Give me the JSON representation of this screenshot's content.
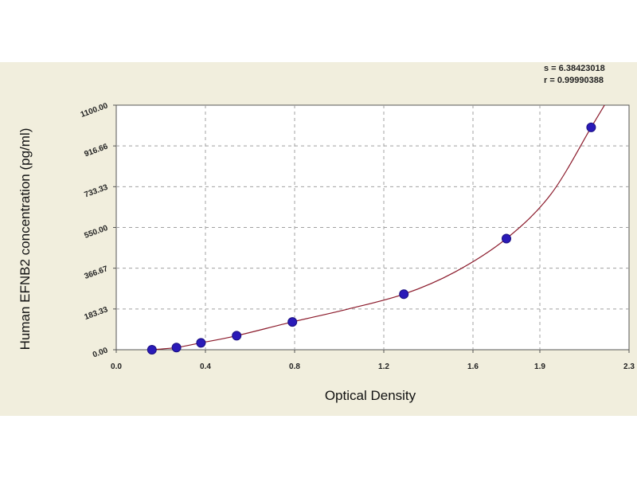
{
  "fit_stats": {
    "s_line": "s = 6.38423018",
    "r_line": "r = 0.99990388"
  },
  "colors": {
    "background": "#f1eedd",
    "plot_area": "#ffffff",
    "curve": "#8b1a2b",
    "point_fill": "#2a1ab8",
    "grid": "#a0a0a0"
  },
  "chart_data": {
    "type": "scatter",
    "title": "",
    "xlabel": "Optical Density",
    "ylabel": "Human EFNB2 concentration (pg/ml)",
    "xlim": [
      0,
      2.3
    ],
    "ylim": [
      0,
      1100
    ],
    "x_ticks": [
      0,
      0.4,
      0.8,
      1.2,
      1.6,
      1.9,
      2.3
    ],
    "x_tick_labels": [
      "0.0",
      "0.4",
      "0.8",
      "1.2",
      "1.6",
      "1.9",
      "2.3"
    ],
    "y_ticks": [
      0,
      183.33,
      366.67,
      550,
      733.33,
      916.66,
      1100
    ],
    "y_tick_labels": [
      "0.00",
      "183.33",
      "366.67",
      "550.00",
      "733.33",
      "916.66",
      "1100.00"
    ],
    "grid": true,
    "series": [
      {
        "type": "scatter",
        "points": [
          {
            "x": 0.16,
            "y": 0
          },
          {
            "x": 0.27,
            "y": 10
          },
          {
            "x": 0.38,
            "y": 31
          },
          {
            "x": 0.54,
            "y": 63
          },
          {
            "x": 0.79,
            "y": 125
          },
          {
            "x": 1.29,
            "y": 250
          },
          {
            "x": 1.75,
            "y": 500
          },
          {
            "x": 2.13,
            "y": 1000
          }
        ]
      },
      {
        "type": "line",
        "fit": "standard curve",
        "points": [
          {
            "x": 0.16,
            "y": 0
          },
          {
            "x": 0.27,
            "y": 10
          },
          {
            "x": 0.38,
            "y": 31
          },
          {
            "x": 0.54,
            "y": 63
          },
          {
            "x": 0.79,
            "y": 125
          },
          {
            "x": 1.04,
            "y": 183
          },
          {
            "x": 1.29,
            "y": 250
          },
          {
            "x": 1.52,
            "y": 350
          },
          {
            "x": 1.75,
            "y": 500
          },
          {
            "x": 1.95,
            "y": 700
          },
          {
            "x": 2.13,
            "y": 1000
          },
          {
            "x": 2.19,
            "y": 1100
          }
        ]
      }
    ]
  }
}
